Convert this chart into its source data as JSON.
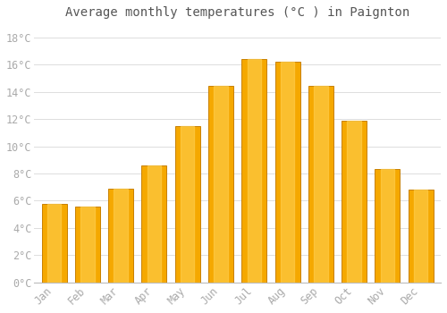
{
  "title": "Average monthly temperatures (°C ) in Paignton",
  "months": [
    "Jan",
    "Feb",
    "Mar",
    "Apr",
    "May",
    "Jun",
    "Jul",
    "Aug",
    "Sep",
    "Oct",
    "Nov",
    "Dec"
  ],
  "values": [
    5.8,
    5.6,
    6.9,
    8.6,
    11.5,
    14.4,
    16.4,
    16.2,
    14.4,
    11.9,
    8.3,
    6.8
  ],
  "bar_color_outer": "#F5A800",
  "bar_color_inner": "#FFD050",
  "bar_edge_color": "#C88000",
  "background_color": "#FFFFFF",
  "grid_color": "#DDDDDD",
  "text_color": "#AAAAAA",
  "title_color": "#555555",
  "ylim": [
    0,
    19
  ],
  "yticks": [
    0,
    2,
    4,
    6,
    8,
    10,
    12,
    14,
    16,
    18
  ],
  "ytick_labels": [
    "0°C",
    "2°C",
    "4°C",
    "6°C",
    "8°C",
    "10°C",
    "12°C",
    "14°C",
    "16°C",
    "18°C"
  ],
  "font_family": "monospace",
  "title_fontsize": 10,
  "tick_fontsize": 8.5,
  "bar_width": 0.75
}
